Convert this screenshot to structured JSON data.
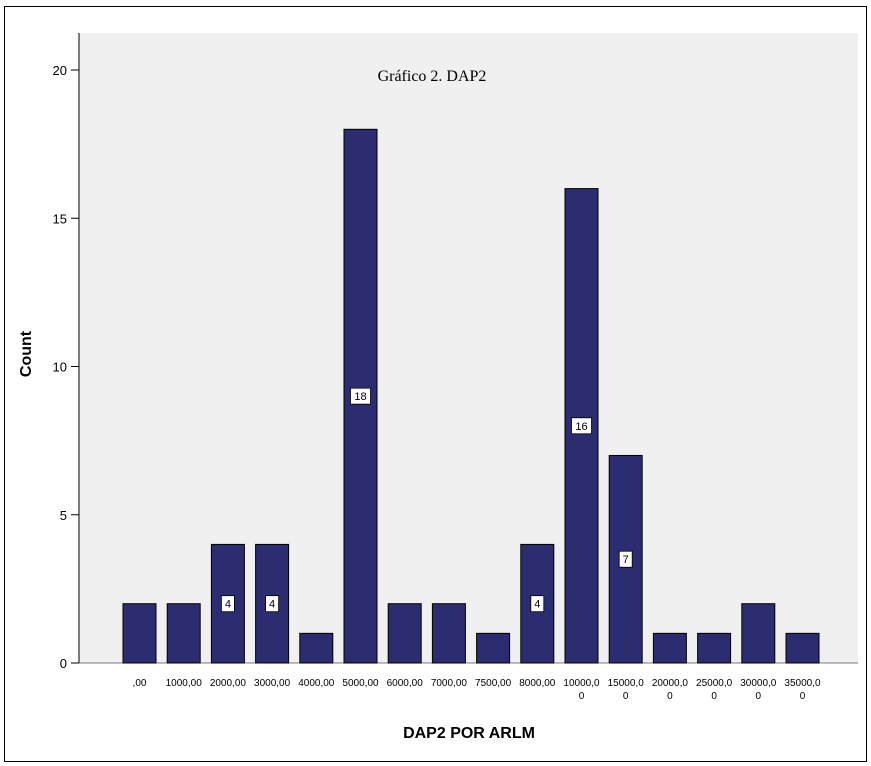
{
  "chart_data": {
    "type": "bar",
    "title": "Gráfico 2. DAP2",
    "xlabel": "DAP2 POR ARLM",
    "ylabel": "Count",
    "ylim": [
      0,
      20
    ],
    "yticks": [
      "0",
      "5",
      "10",
      "15",
      "20"
    ],
    "grid": false,
    "categories": [
      ",00",
      "1000,00",
      "2000,00",
      "3000,00",
      "4000,00",
      "5000,00",
      "6000,00",
      "7000,00",
      "7500,00",
      "8000,00",
      "10000,00",
      "15000,00",
      "20000,00",
      "25000,00",
      "30000,00",
      "35000,00"
    ],
    "category_lines": [
      [
        ",00"
      ],
      [
        "1000,00"
      ],
      [
        "2000,00"
      ],
      [
        "3000,00"
      ],
      [
        "4000,00"
      ],
      [
        "5000,00"
      ],
      [
        "6000,00"
      ],
      [
        "7000,00"
      ],
      [
        "7500,00"
      ],
      [
        "8000,00"
      ],
      [
        "10000,0",
        "0"
      ],
      [
        "15000,0",
        "0"
      ],
      [
        "20000,0",
        "0"
      ],
      [
        "25000,0",
        "0"
      ],
      [
        "30000,0",
        "0"
      ],
      [
        "35000,0",
        "0"
      ]
    ],
    "values": [
      2,
      2,
      4,
      4,
      1,
      18,
      2,
      2,
      1,
      4,
      16,
      7,
      1,
      1,
      2,
      1
    ],
    "data_labels": [
      null,
      null,
      "4",
      "4",
      null,
      "18",
      null,
      null,
      null,
      "4",
      "16",
      "7",
      null,
      null,
      null,
      null
    ],
    "colors": {
      "bar": "#2b2d70",
      "background": "#f0f0f0",
      "outline": "#000000"
    }
  }
}
